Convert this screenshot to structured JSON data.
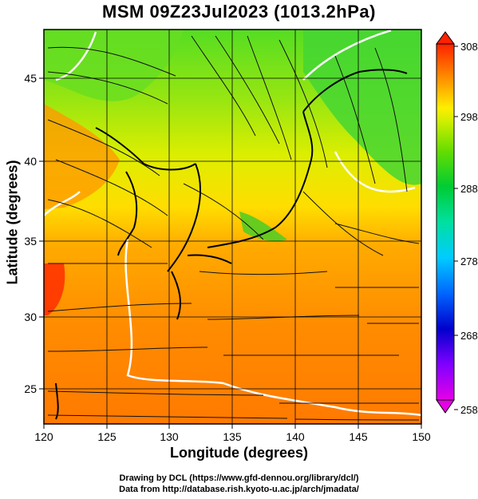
{
  "title": "MSM 09Z23Jul2023 (1013.2hPa)",
  "xlabel": "Longitude (degrees)",
  "ylabel": "Latitude  (degrees)",
  "credit_line1": "Drawing by DCL (https://www.gfd-dennou.org/library/dcl/)",
  "credit_line2": "Data from http://database.rish.kyoto-u.ac.jp/arch/jmadata/",
  "chart_data": {
    "type": "heatmap",
    "title": "MSM 09Z23Jul2023 (1013.2hPa)",
    "xlabel": "Longitude (degrees)",
    "ylabel": "Latitude  (degrees)",
    "xlim": [
      120,
      150
    ],
    "ylim": [
      22.4,
      47.6
    ],
    "x_ticks": [
      "120",
      "125",
      "130",
      "135",
      "140",
      "145",
      "150"
    ],
    "y_ticks": [
      "25",
      "30",
      "35",
      "40",
      "45"
    ],
    "grid": true,
    "colorbar": {
      "range": [
        258,
        308
      ],
      "tick_labels": [
        "258",
        "268",
        "278",
        "288",
        "298",
        "308"
      ],
      "colors": [
        "#e600e6",
        "#8000ff",
        "#0000cc",
        "#0066ff",
        "#00ccff",
        "#00e0a0",
        "#00cc33",
        "#66dd00",
        "#ccee00",
        "#ffee00",
        "#ffaa00",
        "#ff6600",
        "#ff2200"
      ]
    },
    "overlay": "streamlines"
  }
}
